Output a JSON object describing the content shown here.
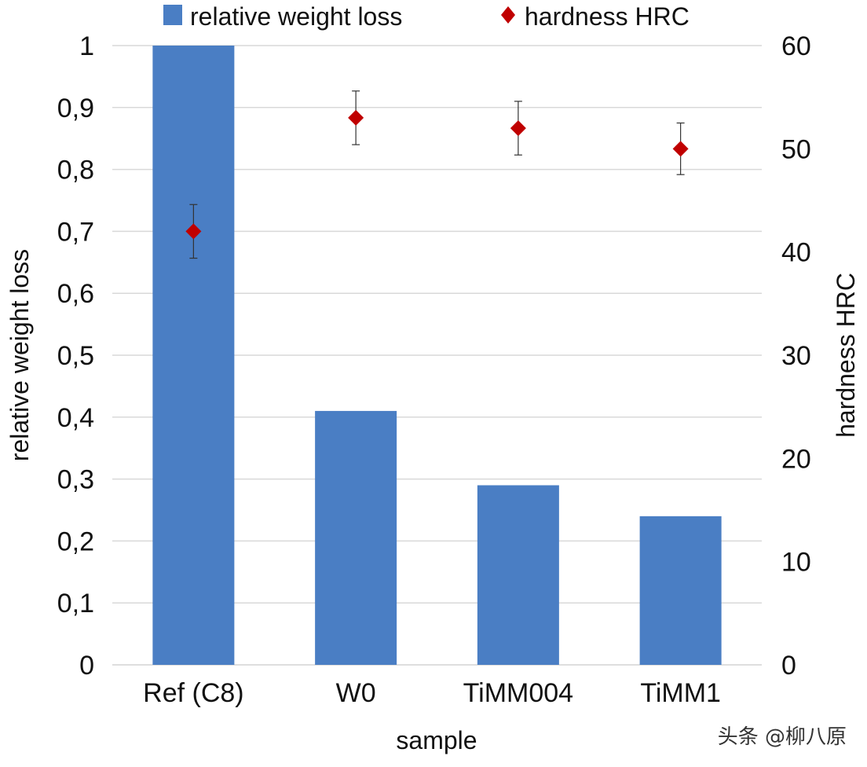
{
  "chart_data": {
    "type": "bar",
    "title": "",
    "categories": [
      "Ref (C8)",
      "W0",
      "TiMM004",
      "TiMM1"
    ],
    "xlabel": "sample",
    "series": [
      {
        "name": "relative weight loss",
        "type": "bar",
        "axis": "left",
        "color": "#4a7ec4",
        "values": [
          1.0,
          0.41,
          0.29,
          0.24
        ]
      },
      {
        "name": "hardness HRC",
        "type": "scatter",
        "axis": "right",
        "color": "#c00000",
        "values": [
          42,
          53,
          52,
          50
        ],
        "error": [
          2.6,
          2.6,
          2.6,
          2.5
        ]
      }
    ],
    "y_left": {
      "label": "relative weight loss",
      "ylim": [
        0,
        1
      ],
      "ticks": [
        "0",
        "0,1",
        "0,2",
        "0,3",
        "0,4",
        "0,5",
        "0,6",
        "0,7",
        "0,8",
        "0,9",
        "1"
      ]
    },
    "y_right": {
      "label": "hardness HRC",
      "ylim": [
        0,
        60
      ],
      "ticks": [
        "0",
        "10",
        "20",
        "30",
        "40",
        "50",
        "60"
      ]
    },
    "grid": true,
    "legend": {
      "position": "top",
      "entries": [
        "relative weight loss",
        "hardness HRC"
      ]
    }
  },
  "watermark": "头条 @柳八原"
}
